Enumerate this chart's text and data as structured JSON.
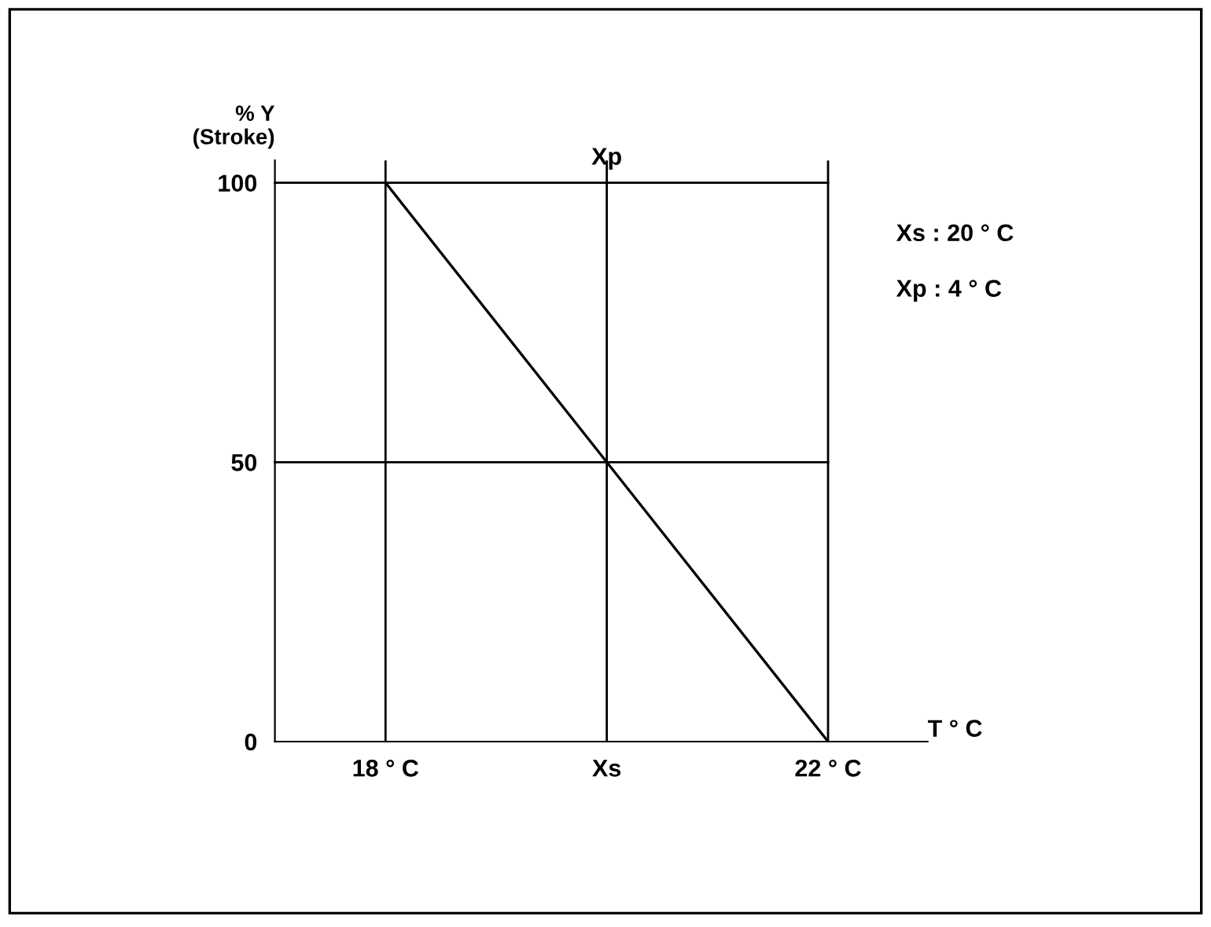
{
  "chart_data": {
    "type": "line",
    "ylabel": "% Y\n(Stroke)",
    "xlabel": "T ° C",
    "series": [
      {
        "color": "#000000",
        "x": [
          18,
          22
        ],
        "values": [
          100,
          0
        ]
      }
    ],
    "xlim": [
      17,
      22.9
    ],
    "ylim": [
      0,
      104
    ],
    "xticks": [
      {
        "value": 18,
        "label": "18 ° C"
      },
      {
        "value": 20,
        "label": "Xs"
      },
      {
        "value": 22,
        "label": "22 ° C"
      }
    ],
    "yticks": [
      0,
      50,
      100
    ],
    "ref_lines": [
      {
        "axis": "x",
        "value": 18,
        "color": "#000000"
      },
      {
        "axis": "x",
        "value": 20,
        "color": "#000000"
      },
      {
        "axis": "x",
        "value": 22,
        "color": "#000000"
      },
      {
        "axis": "y",
        "value": 100,
        "color": "#000000"
      },
      {
        "axis": "y",
        "value": 50,
        "color": "#000000"
      }
    ],
    "annotations": [
      {
        "text": "Xp",
        "x": 20,
        "y": 100
      },
      "Xs : 20 ° C",
      "Xp : 4 ° C"
    ],
    "grid": false,
    "legend": false,
    "marker": "none",
    "line_style": "solid"
  }
}
